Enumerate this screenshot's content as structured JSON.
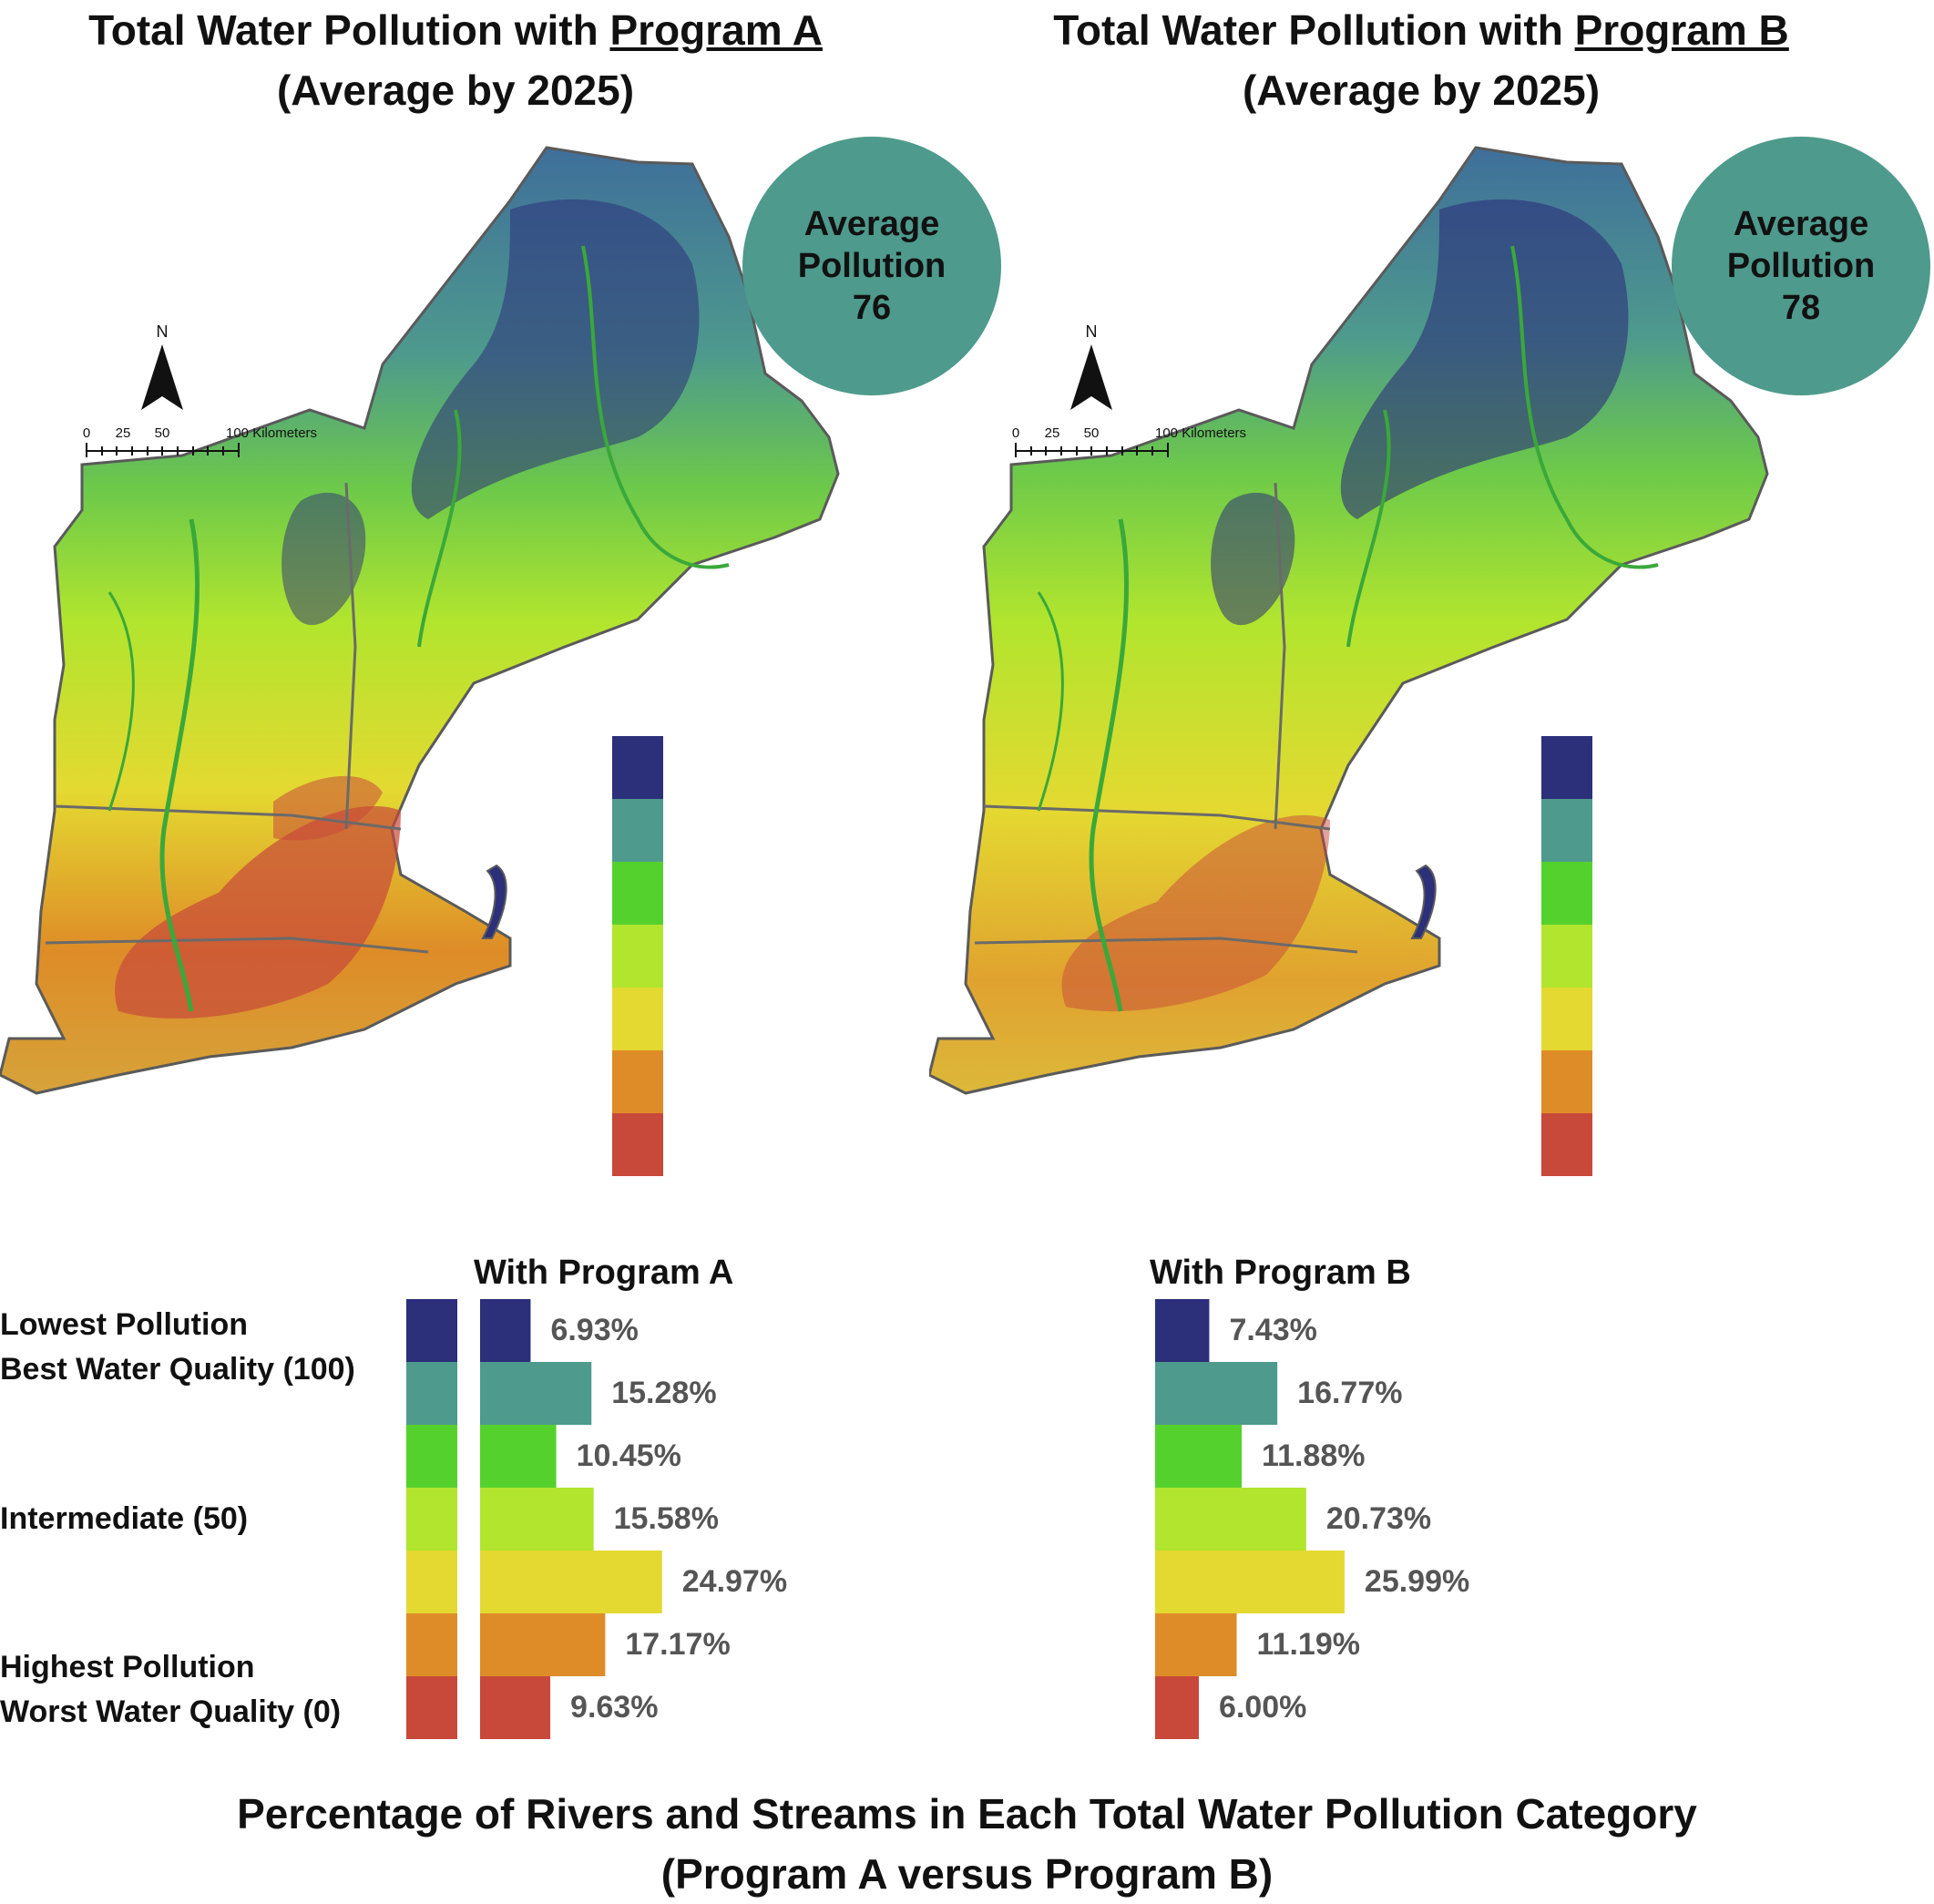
{
  "maps": [
    {
      "title_prefix": "Total Water Pollution with ",
      "title_program": "Program A",
      "title_line2": "(Average by 2025)",
      "avg_line1": "Average",
      "avg_line2": "Pollution",
      "avg_value": "76"
    },
    {
      "title_prefix": "Total Water Pollution with ",
      "title_program": "Program B",
      "title_line2": "(Average by 2025)",
      "avg_line1": "Average",
      "avg_line2": "Pollution",
      "avg_value": "78"
    }
  ],
  "map_common": {
    "north_label": "N",
    "scale_labels": [
      "0",
      "25",
      "50",
      "100 Kilometers"
    ]
  },
  "colors": {
    "categories": [
      "#2c2f7a",
      "#4e9a8d",
      "#55d12e",
      "#b1e52e",
      "#e4d931",
      "#de8c27",
      "#c8483a"
    ],
    "label_text": "#555555",
    "circle": "#4e9a8d"
  },
  "category_labels": {
    "lowest_1": "Lowest Pollution",
    "lowest_2": "Best Water Quality (100)",
    "intermediate": "Intermediate (50)",
    "highest_1": "Highest Pollution",
    "highest_2": "Worst Water Quality (0)"
  },
  "chart_data": [
    {
      "type": "bar",
      "title": "With Program A",
      "categories": [
        "1",
        "2",
        "3",
        "4",
        "5",
        "6",
        "7"
      ],
      "values": [
        6.93,
        15.28,
        10.45,
        15.58,
        24.97,
        17.17,
        9.63
      ],
      "labels": [
        "6.93%",
        "15.28%",
        "10.45%",
        "15.58%",
        "24.97%",
        "17.17%",
        "9.63%"
      ]
    },
    {
      "type": "bar",
      "title": "With Program B",
      "categories": [
        "1",
        "2",
        "3",
        "4",
        "5",
        "6",
        "7"
      ],
      "values": [
        7.43,
        16.77,
        11.88,
        20.73,
        25.99,
        11.19,
        6.0
      ],
      "labels": [
        "7.43%",
        "16.77%",
        "11.88%",
        "20.73%",
        "25.99%",
        "11.19%",
        "6.00%"
      ]
    }
  ],
  "bottom_title_line1": "Percentage of Rivers and Streams in Each Total Water Pollution Category",
  "bottom_title_line2": "(Program A versus Program B)"
}
